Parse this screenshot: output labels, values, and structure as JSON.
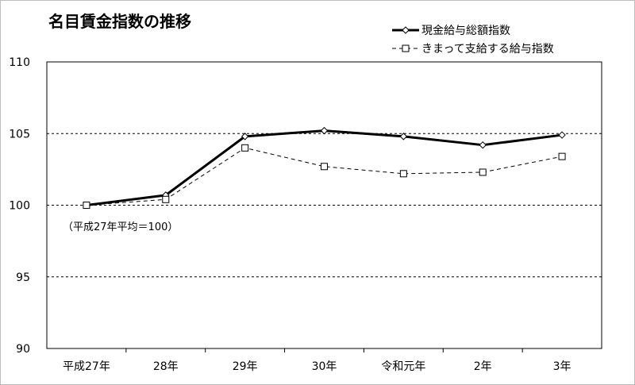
{
  "chart_data": {
    "type": "line",
    "title": "名目賃金指数の推移",
    "categories": [
      "平成27年",
      "28年",
      "29年",
      "30年",
      "令和元年",
      "2年",
      "3年"
    ],
    "series": [
      {
        "name": "現金給与総額指数",
        "values": [
          100.0,
          100.7,
          104.8,
          105.2,
          104.8,
          104.2,
          104.9
        ],
        "color": "#000000",
        "style": "solid",
        "marker": "diamond"
      },
      {
        "name": "きまって支給する給与指数",
        "values": [
          100.0,
          100.4,
          104.0,
          102.7,
          102.2,
          102.3,
          103.4
        ],
        "color": "#000000",
        "style": "dashed",
        "marker": "square"
      }
    ],
    "ylim": [
      90,
      110
    ],
    "yticks": [
      "90",
      "95",
      "100",
      "105",
      "110"
    ],
    "gridlines": [
      95,
      100,
      105
    ],
    "grid": "horizontal-dashed",
    "legend": "top-right",
    "annotation": "（平成27年平均＝100）",
    "xlabel": "",
    "ylabel": ""
  }
}
